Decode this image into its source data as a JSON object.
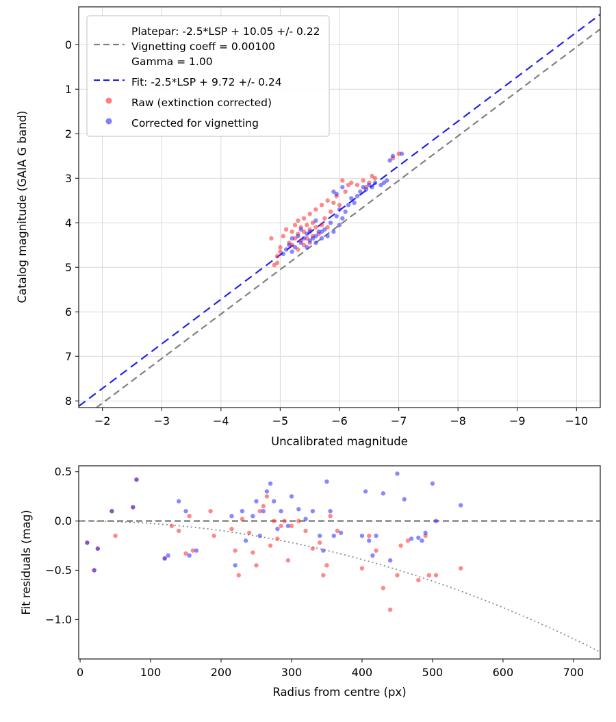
{
  "figure": {
    "background": "#ffffff",
    "grid_color": "#d9d9d9",
    "spine_color": "#2b2b2b",
    "raw_color": "rgba(255,40,40,0.55)",
    "corrected_color": "rgba(40,40,255,0.55)",
    "platepar_line_color": "#808080",
    "fit_line_color": "#2222ee"
  },
  "chart_data": [
    {
      "type": "scatter",
      "title": "",
      "xlabel": "Uncalibrated magnitude",
      "ylabel": "Catalog magnitude (GAIA G band)",
      "xlim": [
        -1.6,
        -10.4
      ],
      "ylim": [
        8.15,
        -0.85
      ],
      "grid": true,
      "x_ticks": [
        {
          "v": -2,
          "label": "−2"
        },
        {
          "v": -3,
          "label": "−3"
        },
        {
          "v": -4,
          "label": "−4"
        },
        {
          "v": -5,
          "label": "−5"
        },
        {
          "v": -6,
          "label": "−6"
        },
        {
          "v": -7,
          "label": "−7"
        },
        {
          "v": -8,
          "label": "−8"
        },
        {
          "v": -9,
          "label": "−9"
        },
        {
          "v": -10,
          "label": "−10"
        }
      ],
      "y_ticks": [
        {
          "v": 0,
          "label": "0"
        },
        {
          "v": 1,
          "label": "1"
        },
        {
          "v": 2,
          "label": "2"
        },
        {
          "v": 3,
          "label": "3"
        },
        {
          "v": 4,
          "label": "4"
        },
        {
          "v": 5,
          "label": "5"
        },
        {
          "v": 6,
          "label": "6"
        },
        {
          "v": 7,
          "label": "7"
        },
        {
          "v": 8,
          "label": "8"
        }
      ],
      "lines": [
        {
          "name": "platepar-line",
          "slope": 1,
          "intercept": 10.05,
          "color": "#808080",
          "dash": "10,6"
        },
        {
          "name": "fit-line",
          "slope": 1,
          "intercept": 9.72,
          "color": "#2222ee",
          "dash": "12,7"
        }
      ],
      "legend": {
        "position": "upper left",
        "items": [
          {
            "type": "dash",
            "color": "#808080",
            "lines": [
              "Platepar: -2.5*LSP + 10.05 +/- 0.22",
              "Vignetting coeff = 0.00100",
              "Gamma = 1.00"
            ]
          },
          {
            "type": "dash",
            "color": "#2222ee",
            "lines": [
              "Fit: -2.5*LSP + 9.72 +/- 0.24"
            ]
          },
          {
            "type": "dot",
            "color": "rgba(255,40,40,0.6)",
            "lines": [
              "Raw (extinction corrected)"
            ]
          },
          {
            "type": "dot",
            "color": "rgba(40,40,255,0.6)",
            "lines": [
              "Corrected for vignetting"
            ]
          }
        ]
      },
      "series": [
        {
          "name": "raw",
          "label": "Raw (extinction corrected)",
          "color": "rgba(255,40,40,0.55)",
          "points": [
            [
              -4.85,
              4.35
            ],
            [
              -4.9,
              4.95
            ],
            [
              -4.95,
              4.75
            ],
            [
              -4.95,
              4.9
            ],
            [
              -5.0,
              4.55
            ],
            [
              -5.0,
              4.65
            ],
            [
              -5.05,
              4.3
            ],
            [
              -5.1,
              4.15
            ],
            [
              -5.15,
              4.45
            ],
            [
              -5.2,
              4.2
            ],
            [
              -5.2,
              4.5
            ],
            [
              -5.25,
              4.05
            ],
            [
              -5.25,
              4.35
            ],
            [
              -5.3,
              3.95
            ],
            [
              -5.3,
              4.25
            ],
            [
              -5.3,
              4.6
            ],
            [
              -5.35,
              4.1
            ],
            [
              -5.35,
              4.4
            ],
            [
              -5.4,
              3.9
            ],
            [
              -5.4,
              4.2
            ],
            [
              -5.4,
              4.5
            ],
            [
              -5.45,
              4.05
            ],
            [
              -5.45,
              4.35
            ],
            [
              -5.5,
              3.8
            ],
            [
              -5.5,
              4.15
            ],
            [
              -5.5,
              4.45
            ],
            [
              -5.55,
              4.0
            ],
            [
              -5.55,
              4.3
            ],
            [
              -5.6,
              3.7
            ],
            [
              -5.6,
              4.1
            ],
            [
              -5.65,
              4.25
            ],
            [
              -5.7,
              3.6
            ],
            [
              -5.7,
              4.05
            ],
            [
              -5.75,
              3.9
            ],
            [
              -5.8,
              3.5
            ],
            [
              -5.8,
              4.1
            ],
            [
              -5.85,
              3.75
            ],
            [
              -5.9,
              3.55
            ],
            [
              -5.95,
              3.4
            ],
            [
              -6.0,
              3.6
            ],
            [
              -6.05,
              3.05
            ],
            [
              -6.1,
              3.3
            ],
            [
              -6.15,
              3.15
            ],
            [
              -6.2,
              3.1
            ],
            [
              -6.3,
              3.15
            ],
            [
              -6.4,
              3.05
            ],
            [
              -6.45,
              3.2
            ],
            [
              -6.5,
              3.1
            ],
            [
              -6.55,
              2.95
            ],
            [
              -6.6,
              3.0
            ],
            [
              -6.9,
              2.55
            ],
            [
              -7.0,
              2.45
            ]
          ]
        },
        {
          "name": "vignetting-corrected",
          "label": "Corrected for vignetting",
          "color": "rgba(40,40,255,0.55)",
          "points": [
            [
              -5.05,
              4.7
            ],
            [
              -5.1,
              4.6
            ],
            [
              -5.15,
              4.5
            ],
            [
              -5.2,
              4.35
            ],
            [
              -5.2,
              4.65
            ],
            [
              -5.25,
              4.55
            ],
            [
              -5.3,
              4.3
            ],
            [
              -5.35,
              4.15
            ],
            [
              -5.35,
              4.45
            ],
            [
              -5.4,
              4.35
            ],
            [
              -5.45,
              4.25
            ],
            [
              -5.45,
              4.55
            ],
            [
              -5.5,
              4.2
            ],
            [
              -5.5,
              4.4
            ],
            [
              -5.55,
              4.35
            ],
            [
              -5.6,
              3.95
            ],
            [
              -5.6,
              4.3
            ],
            [
              -5.6,
              4.45
            ],
            [
              -5.65,
              4.2
            ],
            [
              -5.7,
              4.35
            ],
            [
              -5.7,
              4.2
            ],
            [
              -5.75,
              4.15
            ],
            [
              -5.8,
              4.3
            ],
            [
              -5.85,
              4.0
            ],
            [
              -5.9,
              3.3
            ],
            [
              -5.9,
              4.2
            ],
            [
              -5.95,
              3.35
            ],
            [
              -5.95,
              3.85
            ],
            [
              -6.0,
              3.7
            ],
            [
              -6.0,
              4.05
            ],
            [
              -6.05,
              3.2
            ],
            [
              -6.05,
              3.9
            ],
            [
              -6.1,
              3.75
            ],
            [
              -6.15,
              3.6
            ],
            [
              -6.2,
              3.45
            ],
            [
              -6.25,
              3.55
            ],
            [
              -6.3,
              3.4
            ],
            [
              -6.35,
              3.3
            ],
            [
              -6.4,
              3.2
            ],
            [
              -6.45,
              3.25
            ],
            [
              -6.5,
              3.15
            ],
            [
              -6.55,
              3.2
            ],
            [
              -6.6,
              3.1
            ],
            [
              -6.7,
              3.15
            ],
            [
              -6.75,
              3.1
            ],
            [
              -6.8,
              3.05
            ],
            [
              -6.85,
              2.6
            ],
            [
              -6.9,
              2.5
            ],
            [
              -7.05,
              2.45
            ]
          ]
        }
      ]
    },
    {
      "type": "scatter",
      "title": "",
      "xlabel": "Radius from centre (px)",
      "ylabel": "Fit residuals (mag)",
      "xlim": [
        -2,
        738
      ],
      "ylim": [
        -1.4,
        0.56
      ],
      "grid": false,
      "x_ticks": [
        {
          "v": 0,
          "label": "0"
        },
        {
          "v": 100,
          "label": "100"
        },
        {
          "v": 200,
          "label": "200"
        },
        {
          "v": 300,
          "label": "300"
        },
        {
          "v": 400,
          "label": "400"
        },
        {
          "v": 500,
          "label": "500"
        },
        {
          "v": 600,
          "label": "600"
        },
        {
          "v": 700,
          "label": "700"
        }
      ],
      "y_ticks": [
        {
          "v": 0.5,
          "label": "0.5"
        },
        {
          "v": 0.0,
          "label": "0.0"
        },
        {
          "v": -0.5,
          "label": "−0.5"
        },
        {
          "v": -1.0,
          "label": "−1.0"
        }
      ],
      "zero_line": {
        "color": "#555555",
        "dash": "9,5"
      },
      "model_curve": {
        "name": "vignetting-model-curve",
        "coeff": -2.44e-06,
        "color": "#888888",
        "dash": "2,4"
      },
      "series": [
        {
          "name": "raw-residuals",
          "label": "Raw (extinction corrected)",
          "color": "rgba(255,40,40,0.55)",
          "points": [
            [
              10,
              -0.22
            ],
            [
              20,
              -0.5
            ],
            [
              25,
              -0.28
            ],
            [
              45,
              0.1
            ],
            [
              50,
              -0.15
            ],
            [
              75,
              0.14
            ],
            [
              80,
              0.42
            ],
            [
              120,
              -0.38
            ],
            [
              130,
              -0.05
            ],
            [
              140,
              -0.1
            ],
            [
              150,
              -0.33
            ],
            [
              155,
              0.05
            ],
            [
              160,
              -0.3
            ],
            [
              185,
              0.1
            ],
            [
              190,
              -0.15
            ],
            [
              215,
              -0.08
            ],
            [
              220,
              -0.3
            ],
            [
              225,
              -0.55
            ],
            [
              230,
              0.02
            ],
            [
              240,
              -0.12
            ],
            [
              245,
              -0.32
            ],
            [
              250,
              -0.45
            ],
            [
              255,
              0.1
            ],
            [
              260,
              0.15
            ],
            [
              265,
              0.25
            ],
            [
              270,
              -0.25
            ],
            [
              275,
              0.0
            ],
            [
              280,
              -0.18
            ],
            [
              285,
              -0.05
            ],
            [
              290,
              0.0
            ],
            [
              295,
              -0.4
            ],
            [
              300,
              -0.05
            ],
            [
              310,
              0.0
            ],
            [
              320,
              -0.1
            ],
            [
              330,
              -0.28
            ],
            [
              340,
              -0.22
            ],
            [
              345,
              -0.55
            ],
            [
              350,
              -0.45
            ],
            [
              355,
              0.05
            ],
            [
              365,
              -0.1
            ],
            [
              400,
              -0.48
            ],
            [
              410,
              -0.15
            ],
            [
              420,
              -0.3
            ],
            [
              430,
              -0.68
            ],
            [
              440,
              -0.9
            ],
            [
              450,
              -0.55
            ],
            [
              455,
              -0.25
            ],
            [
              465,
              -0.2
            ],
            [
              480,
              -0.6
            ],
            [
              490,
              -0.15
            ],
            [
              495,
              -0.55
            ],
            [
              505,
              -0.55
            ],
            [
              540,
              -0.48
            ]
          ]
        },
        {
          "name": "corrected-residuals",
          "label": "Corrected for vignetting",
          "color": "rgba(40,40,255,0.55)",
          "points": [
            [
              10,
              -0.22
            ],
            [
              20,
              -0.5
            ],
            [
              25,
              -0.28
            ],
            [
              45,
              0.1
            ],
            [
              75,
              0.14
            ],
            [
              80,
              0.42
            ],
            [
              120,
              -0.38
            ],
            [
              125,
              -0.35
            ],
            [
              140,
              0.2
            ],
            [
              150,
              0.1
            ],
            [
              155,
              -0.35
            ],
            [
              165,
              -0.3
            ],
            [
              215,
              0.05
            ],
            [
              220,
              -0.45
            ],
            [
              230,
              0.1
            ],
            [
              235,
              -0.2
            ],
            [
              245,
              0.05
            ],
            [
              250,
              0.2
            ],
            [
              255,
              -0.15
            ],
            [
              260,
              0.1
            ],
            [
              265,
              0.3
            ],
            [
              270,
              0.38
            ],
            [
              275,
              0.2
            ],
            [
              280,
              -0.08
            ],
            [
              285,
              0.1
            ],
            [
              295,
              -0.05
            ],
            [
              300,
              0.25
            ],
            [
              310,
              0.12
            ],
            [
              320,
              0.02
            ],
            [
              330,
              0.1
            ],
            [
              340,
              -0.15
            ],
            [
              345,
              -0.3
            ],
            [
              350,
              0.4
            ],
            [
              355,
              0.1
            ],
            [
              360,
              -0.15
            ],
            [
              370,
              -0.12
            ],
            [
              400,
              -0.15
            ],
            [
              405,
              0.3
            ],
            [
              410,
              -0.2
            ],
            [
              415,
              -0.35
            ],
            [
              420,
              -0.15
            ],
            [
              430,
              0.28
            ],
            [
              440,
              -0.4
            ],
            [
              450,
              0.48
            ],
            [
              460,
              0.22
            ],
            [
              470,
              -0.18
            ],
            [
              480,
              -0.17
            ],
            [
              485,
              -0.2
            ],
            [
              490,
              -0.12
            ],
            [
              500,
              0.38
            ],
            [
              505,
              0.0
            ],
            [
              540,
              0.16
            ]
          ]
        }
      ]
    }
  ]
}
